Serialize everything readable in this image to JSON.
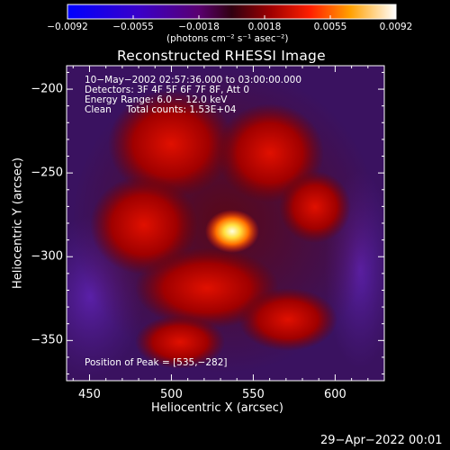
{
  "chart_data": {
    "type": "heatmap",
    "title": "Reconstructed RHESSI Image",
    "xlabel": "Heliocentric X (arcsec)",
    "ylabel": "Heliocentric Y (arcsec)",
    "x_ticks": [
      "450",
      "500",
      "550",
      "600"
    ],
    "x_tick_values": [
      450,
      500,
      550,
      600
    ],
    "y_ticks": [
      "−200",
      "−250",
      "−300",
      "−350"
    ],
    "y_tick_values": [
      -200,
      -250,
      -300,
      -350
    ],
    "xlim": [
      436,
      630
    ],
    "ylim": [
      -374,
      -186
    ],
    "peak": {
      "x": 535,
      "y": -282
    },
    "colorbar": {
      "ticks": [
        "−0.0092",
        "−0.0055",
        "−0.0018",
        "0.0018",
        "0.0055",
        "0.0092"
      ],
      "range": [
        -0.0092,
        0.0092
      ],
      "units": "(photons cm⁻² s⁻¹ asec⁻²)"
    },
    "info_lines": [
      "10−May−2002 02:57:36.000 to 03:00:00.000",
      "Detectors: 3F 4F 5F 6F 7F 8F, Att 0",
      "Energy Range: 6.0 − 12.0 keV",
      "Clean     Total counts: 1.53E+04"
    ],
    "peak_label": "Position of Peak = [535,−282]"
  },
  "footer": {
    "timestamp": "29−Apr−2022 00:01"
  }
}
